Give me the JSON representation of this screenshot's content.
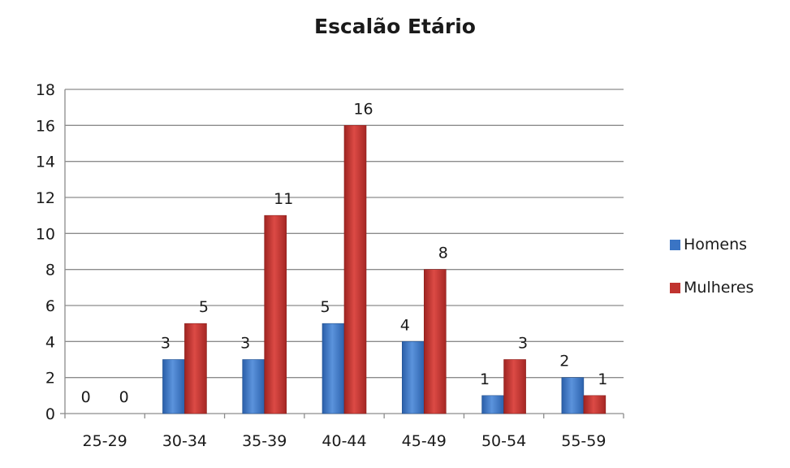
{
  "chart_data": {
    "type": "bar",
    "title": "Escalão Etário",
    "xlabel": "",
    "ylabel": "",
    "categories": [
      "25-29",
      "30-34",
      "35-39",
      "40-44",
      "45-49",
      "50-54",
      "55-59"
    ],
    "series": [
      {
        "name": "Homens",
        "values": [
          0,
          3,
          3,
          5,
          4,
          1,
          2
        ],
        "color": "#3a74c4"
      },
      {
        "name": "Mulheres",
        "values": [
          0,
          5,
          11,
          16,
          8,
          3,
          1
        ],
        "color": "#c0332f"
      }
    ],
    "ylim": [
      0,
      18
    ],
    "yticks": [
      0,
      2,
      4,
      6,
      8,
      10,
      12,
      14,
      16,
      18
    ],
    "grid": true,
    "legend_position": "right"
  }
}
